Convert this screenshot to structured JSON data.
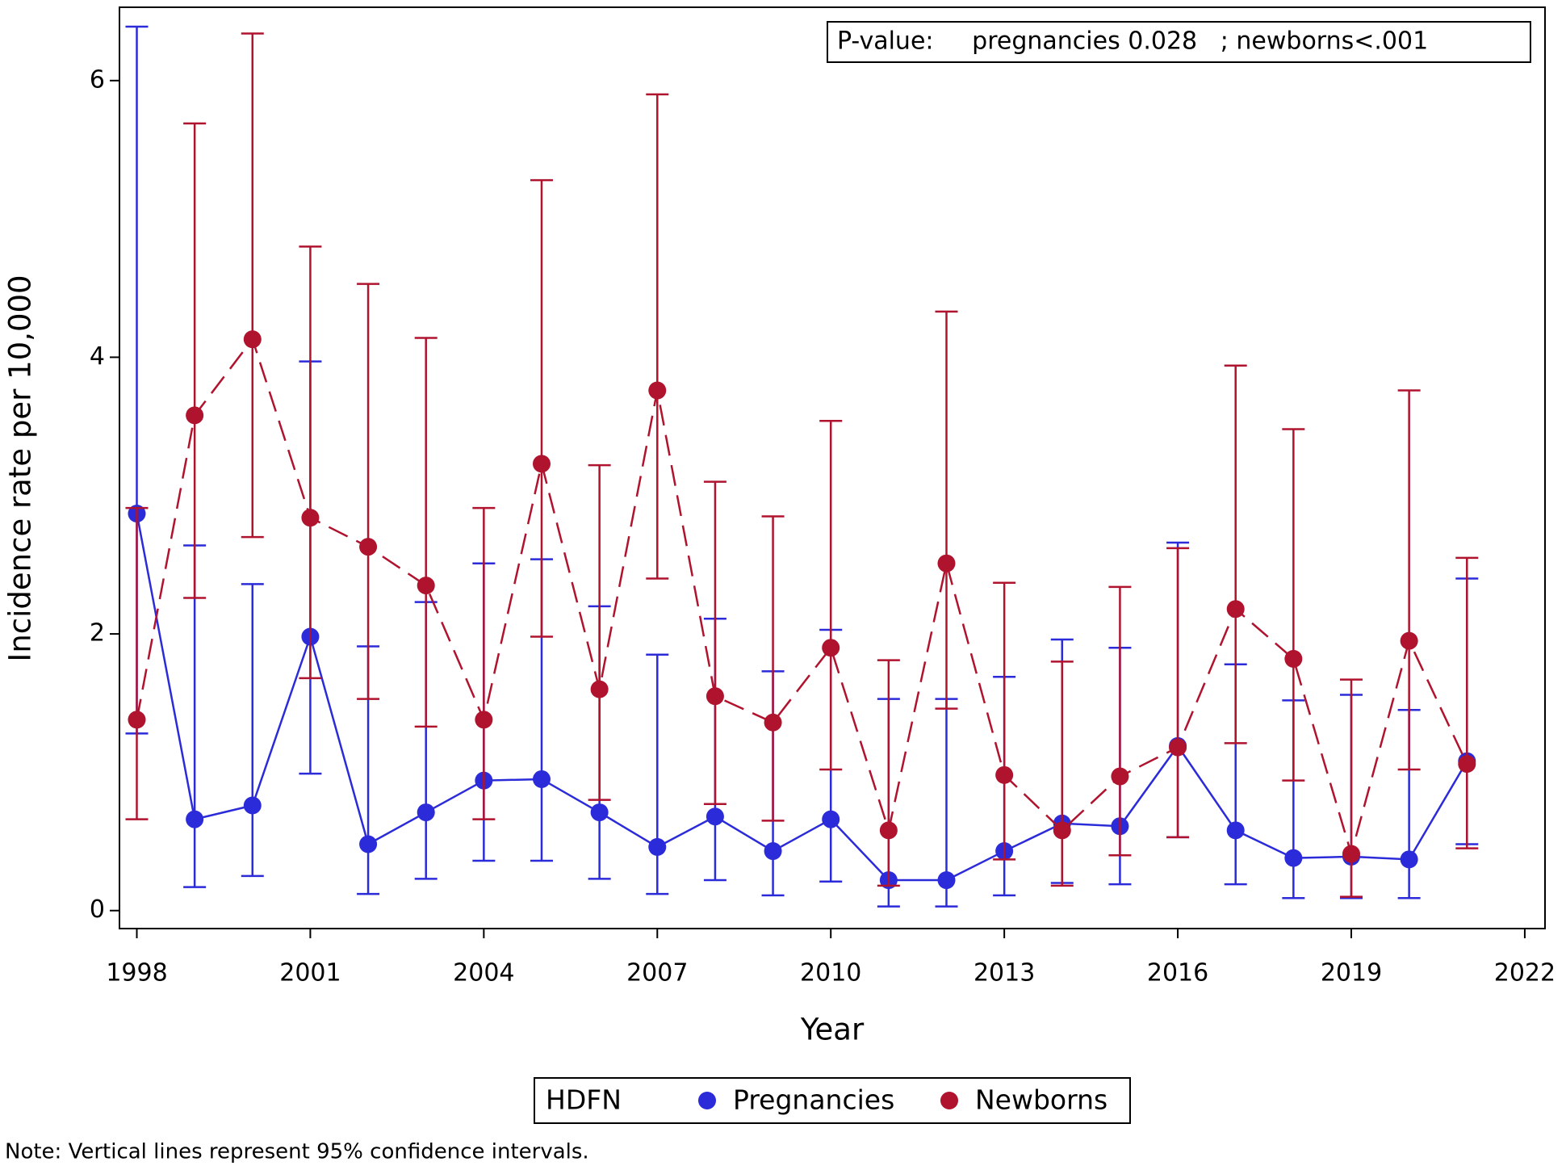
{
  "chart_data": {
    "type": "line",
    "y_label": "Incidence rate per 10,000",
    "x_label": "Year",
    "annotation": "P-value:     pregnancies 0.028   ; newborns<.001",
    "legend_title": "HDFN",
    "note": "Note: Vertical lines represent 95% confidence intervals.",
    "x": [
      1998,
      1999,
      2000,
      2001,
      2002,
      2003,
      2004,
      2005,
      2006,
      2007,
      2008,
      2009,
      2010,
      2011,
      2012,
      2013,
      2014,
      2015,
      2016,
      2017,
      2018,
      2019,
      2020,
      2021
    ],
    "xlim": [
      1997.7,
      2022.35
    ],
    "xticks": [
      1998,
      2001,
      2004,
      2007,
      2010,
      2013,
      2016,
      2019,
      2022
    ],
    "ylim": [
      -0.13,
      6.53
    ],
    "yticks": [
      0,
      2,
      4,
      6
    ],
    "series": [
      {
        "name": "Pregnancies",
        "color": "#2b2bd9",
        "dashed": false,
        "values": [
          2.87,
          0.66,
          0.76,
          1.98,
          0.48,
          0.71,
          0.94,
          0.95,
          0.71,
          0.46,
          0.68,
          0.43,
          0.66,
          0.22,
          0.22,
          0.43,
          0.63,
          0.61,
          1.19,
          0.58,
          0.38,
          0.39,
          0.37,
          1.08
        ],
        "upper": [
          6.39,
          2.64,
          2.36,
          3.97,
          1.91,
          2.23,
          2.51,
          2.54,
          2.2,
          1.85,
          2.11,
          1.73,
          2.03,
          1.53,
          1.53,
          1.69,
          1.96,
          1.9,
          2.66,
          1.78,
          1.52,
          1.56,
          1.45,
          2.4
        ],
        "lower": [
          1.28,
          0.17,
          0.25,
          0.99,
          0.12,
          0.23,
          0.36,
          0.36,
          0.23,
          0.12,
          0.22,
          0.11,
          0.21,
          0.03,
          0.03,
          0.11,
          0.2,
          0.19,
          0.53,
          0.19,
          0.09,
          0.09,
          0.09,
          0.48
        ]
      },
      {
        "name": "Newborns",
        "color": "#b0132e",
        "dashed": true,
        "values": [
          1.38,
          3.58,
          4.13,
          2.84,
          2.63,
          2.35,
          1.38,
          3.23,
          1.6,
          3.76,
          1.55,
          1.36,
          1.9,
          0.58,
          2.51,
          0.98,
          0.58,
          0.97,
          1.18,
          2.18,
          1.82,
          0.41,
          1.95,
          1.06
        ],
        "upper": [
          2.91,
          5.69,
          6.34,
          4.8,
          4.53,
          4.14,
          2.91,
          5.28,
          3.22,
          5.9,
          3.1,
          2.85,
          3.54,
          1.81,
          4.33,
          2.37,
          1.8,
          2.34,
          2.62,
          3.94,
          3.48,
          1.67,
          3.76,
          2.55
        ],
        "lower": [
          0.66,
          2.26,
          2.7,
          1.68,
          1.53,
          1.33,
          0.66,
          1.98,
          0.8,
          2.4,
          0.77,
          0.65,
          1.02,
          0.18,
          1.46,
          0.37,
          0.18,
          0.4,
          0.53,
          1.21,
          0.94,
          0.1,
          1.02,
          0.45
        ]
      }
    ]
  }
}
